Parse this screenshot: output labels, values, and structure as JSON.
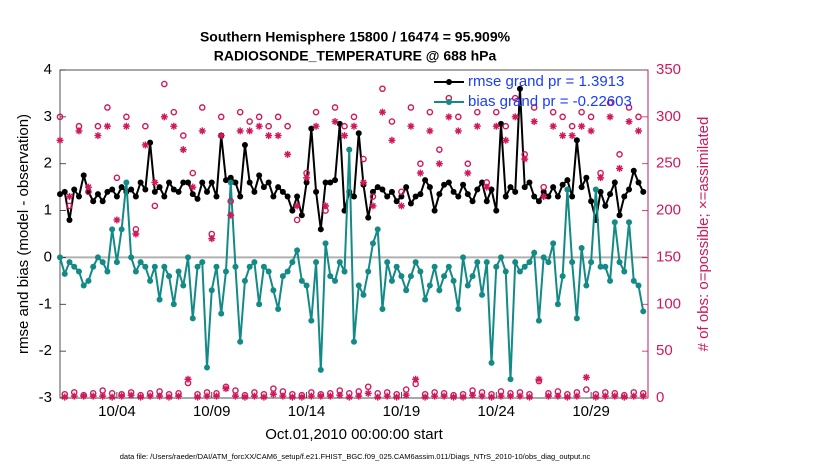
{
  "chart_data": {
    "type": "line",
    "title": "Southern Hemisphere 15800 / 16474 = 95.909%",
    "subtitle": "RADIOSONDE_TEMPERATURE @ 688 hPa",
    "ylabel": "rmse and bias (model - observation)",
    "y2label": "# of obs: o=possible; ×=assimilated",
    "xlabel": "Oct.01,2010 00:00:00 start",
    "footnote": "data file: /Users/raeder/DAI/ATM_forcXX/CAM6_setup/f.e21.FHIST_BGC.f09_025.CAM6assim.011/Diags_NTrS_2010-10/obs_diag_output.nc",
    "legend": "top-right",
    "xlim": [
      0,
      31
    ],
    "xticks": [
      {
        "value": 3,
        "label": "10/04"
      },
      {
        "value": 8,
        "label": "10/09"
      },
      {
        "value": 13,
        "label": "10/14"
      },
      {
        "value": 18,
        "label": "10/19"
      },
      {
        "value": 23,
        "label": "10/24"
      },
      {
        "value": 28,
        "label": "10/29"
      }
    ],
    "ylim": [
      -3,
      4
    ],
    "yticks": [
      -3,
      -2,
      -1,
      0,
      1,
      2,
      3,
      4
    ],
    "y2lim": [
      0,
      350
    ],
    "y2ticks": [
      0,
      50,
      100,
      150,
      200,
      250,
      300,
      350
    ],
    "y2color": "#d0185a",
    "x": [
      0,
      0.25,
      0.5,
      0.75,
      1,
      1.25,
      1.5,
      1.75,
      2,
      2.25,
      2.5,
      2.75,
      3,
      3.25,
      3.5,
      3.75,
      4,
      4.25,
      4.5,
      4.75,
      5,
      5.25,
      5.5,
      5.75,
      6,
      6.25,
      6.5,
      6.75,
      7,
      7.25,
      7.5,
      7.75,
      8,
      8.25,
      8.5,
      8.75,
      9,
      9.25,
      9.5,
      9.75,
      10,
      10.25,
      10.5,
      10.75,
      11,
      11.25,
      11.5,
      11.75,
      12,
      12.25,
      12.5,
      12.75,
      13,
      13.25,
      13.5,
      13.75,
      14,
      14.25,
      14.5,
      14.75,
      15,
      15.25,
      15.5,
      15.75,
      16,
      16.25,
      16.5,
      16.75,
      17,
      17.25,
      17.5,
      17.75,
      18,
      18.25,
      18.5,
      18.75,
      19,
      19.25,
      19.5,
      19.75,
      20,
      20.25,
      20.5,
      20.75,
      21,
      21.25,
      21.5,
      21.75,
      22,
      22.25,
      22.5,
      22.75,
      23,
      23.25,
      23.5,
      23.75,
      24,
      24.25,
      24.5,
      24.75,
      25,
      25.25,
      25.5,
      25.75,
      26,
      26.25,
      26.5,
      26.75,
      27,
      27.25,
      27.5,
      27.75,
      28,
      28.25,
      28.5,
      28.75,
      29,
      29.25,
      29.5,
      29.75,
      30,
      30.25,
      30.5,
      30.75
    ],
    "series": [
      {
        "name": "rmse grand pr = 1.3913",
        "color": "#000000",
        "marker": "dot",
        "values": [
          1.35,
          1.4,
          0.8,
          1.45,
          1.3,
          1.75,
          1.4,
          1.2,
          1.35,
          1.2,
          1.4,
          1.45,
          1.3,
          1.5,
          1.4,
          1.45,
          1.3,
          1.6,
          1.45,
          2.45,
          1.4,
          1.5,
          1.3,
          1.6,
          1.45,
          1.4,
          1.6,
          1.6,
          1.35,
          1.25,
          1.6,
          1.4,
          1.6,
          1.3,
          2.6,
          1.65,
          1.7,
          1.6,
          1.3,
          2.4,
          1.6,
          1.4,
          1.75,
          1.5,
          1.6,
          1.3,
          1.5,
          1.4,
          1.3,
          1.0,
          1.3,
          0.9,
          1.6,
          2.75,
          1.4,
          0.6,
          1.6,
          1.6,
          1.65,
          2.85,
          1.0,
          1.4,
          1.3,
          2.65,
          1.55,
          0.85,
          1.4,
          1.5,
          1.45,
          1.3,
          1.4,
          1.2,
          1.3,
          1.5,
          1.15,
          1.3,
          1.35,
          1.65,
          1.5,
          1.0,
          1.35,
          1.55,
          1.6,
          1.4,
          1.3,
          1.55,
          1.35,
          1.2,
          1.45,
          1.6,
          1.2,
          1.45,
          1.0,
          2.85,
          1.3,
          1.5,
          1.4,
          3.6,
          1.5,
          1.6,
          1.3,
          1.2,
          1.4,
          1.3,
          1.5,
          1.3,
          1.55,
          1.65,
          1.3,
          2.5,
          1.5,
          1.7,
          1.2,
          0.8,
          1.4,
          1.1,
          1.35,
          1.6,
          0.9,
          1.3,
          1.45,
          1.85,
          1.6,
          1.4
        ]
      },
      {
        "name": "bias grand pr = -0.22603",
        "color": "#148a87",
        "marker": "dot",
        "values": [
          0.0,
          -0.35,
          -0.1,
          -0.2,
          -0.3,
          -0.6,
          -0.5,
          -0.2,
          0.0,
          -0.1,
          -0.3,
          0.6,
          -0.1,
          0.6,
          1.6,
          0.0,
          -0.3,
          -0.1,
          -0.2,
          -0.5,
          -0.2,
          -0.9,
          -0.2,
          -0.4,
          -1.0,
          -0.3,
          -0.6,
          0.0,
          -1.3,
          -0.2,
          -0.1,
          -2.35,
          -0.7,
          -0.2,
          -1.2,
          -0.3,
          1.6,
          -0.2,
          -1.8,
          -0.5,
          -0.2,
          -0.1,
          -1.0,
          -0.2,
          -0.3,
          -0.7,
          -1.1,
          -0.4,
          -0.3,
          -0.1,
          0.15,
          -0.5,
          -0.6,
          -1.35,
          -0.1,
          -2.4,
          0.3,
          -0.4,
          -0.5,
          -0.1,
          -0.3,
          2.3,
          -1.8,
          -0.6,
          -0.8,
          -0.3,
          0.3,
          0.6,
          -1.1,
          -0.1,
          -0.5,
          -0.2,
          -0.4,
          -0.7,
          -0.4,
          -0.1,
          -0.3,
          -0.9,
          -0.6,
          -0.2,
          -0.7,
          -0.4,
          -0.2,
          -0.5,
          -1.1,
          0.0,
          -0.6,
          -0.4,
          -0.1,
          -0.8,
          -0.1,
          -2.25,
          -0.2,
          0.0,
          -0.3,
          -2.6,
          -0.1,
          -0.3,
          -0.2,
          -0.1,
          0.1,
          -1.35,
          0.0,
          -0.1,
          0.3,
          -1.0,
          -0.4,
          1.45,
          -0.1,
          -1.3,
          0.2,
          -0.6,
          -0.1,
          1.45,
          -0.2,
          -0.2,
          -0.5,
          0.75,
          -0.1,
          -0.3,
          0.75,
          -0.5,
          -0.6,
          -1.15
        ]
      },
      {
        "color": "#d0185a",
        "marker": "o",
        "axis": "y2",
        "values": [
          300,
          4,
          205,
          6,
          290,
          3,
          220,
          5,
          290,
          8,
          310,
          5,
          235,
          4,
          300,
          6,
          180,
          3,
          290,
          5,
          205,
          7,
          335,
          4,
          305,
          5,
          280,
          16,
          240,
          4,
          310,
          6,
          175,
          5,
          300,
          12,
          210,
          8,
          305,
          3,
          295,
          6,
          300,
          4,
          290,
          10,
          300,
          7,
          290,
          4,
          190,
          3,
          240,
          6,
          305,
          4,
          200,
          5,
          310,
          8,
          290,
          5,
          300,
          7,
          255,
          12,
          215,
          5,
          330,
          6,
          295,
          4,
          220,
          9,
          310,
          15,
          250,
          4,
          305,
          6,
          265,
          5,
          320,
          3,
          300,
          4,
          250,
          8,
          305,
          6,
          230,
          4,
          305,
          7,
          290,
          5,
          320,
          6,
          260,
          4,
          310,
          18,
          225,
          5,
          305,
          7,
          300,
          4,
          290,
          6,
          305,
          9,
          300,
          4,
          240,
          6,
          315,
          5,
          260,
          3,
          310,
          6,
          300,
          5
        ]
      },
      {
        "color": "#d0185a",
        "marker": "*",
        "axis": "y2",
        "values": [
          275,
          1,
          215,
          2,
          285,
          2,
          225,
          2,
          280,
          2,
          290,
          1,
          190,
          2,
          290,
          3,
          175,
          1,
          270,
          2,
          230,
          2,
          300,
          1,
          290,
          2,
          265,
          20,
          225,
          1,
          285,
          2,
          170,
          2,
          280,
          10,
          195,
          2,
          285,
          1,
          285,
          2,
          290,
          1,
          280,
          4,
          280,
          2,
          260,
          1,
          205,
          1,
          235,
          2,
          290,
          2,
          205,
          2,
          295,
          3,
          280,
          1,
          290,
          2,
          230,
          5,
          205,
          1,
          305,
          2,
          275,
          1,
          205,
          3,
          290,
          20,
          240,
          1,
          285,
          2,
          250,
          2,
          300,
          1,
          285,
          1,
          240,
          3,
          290,
          2,
          225,
          1,
          290,
          2,
          275,
          2,
          300,
          2,
          255,
          1,
          295,
          20,
          215,
          2,
          290,
          2,
          280,
          1,
          280,
          2,
          290,
          22,
          285,
          1,
          235,
          2,
          300,
          2,
          245,
          1,
          295,
          2,
          285,
          2
        ]
      }
    ]
  }
}
